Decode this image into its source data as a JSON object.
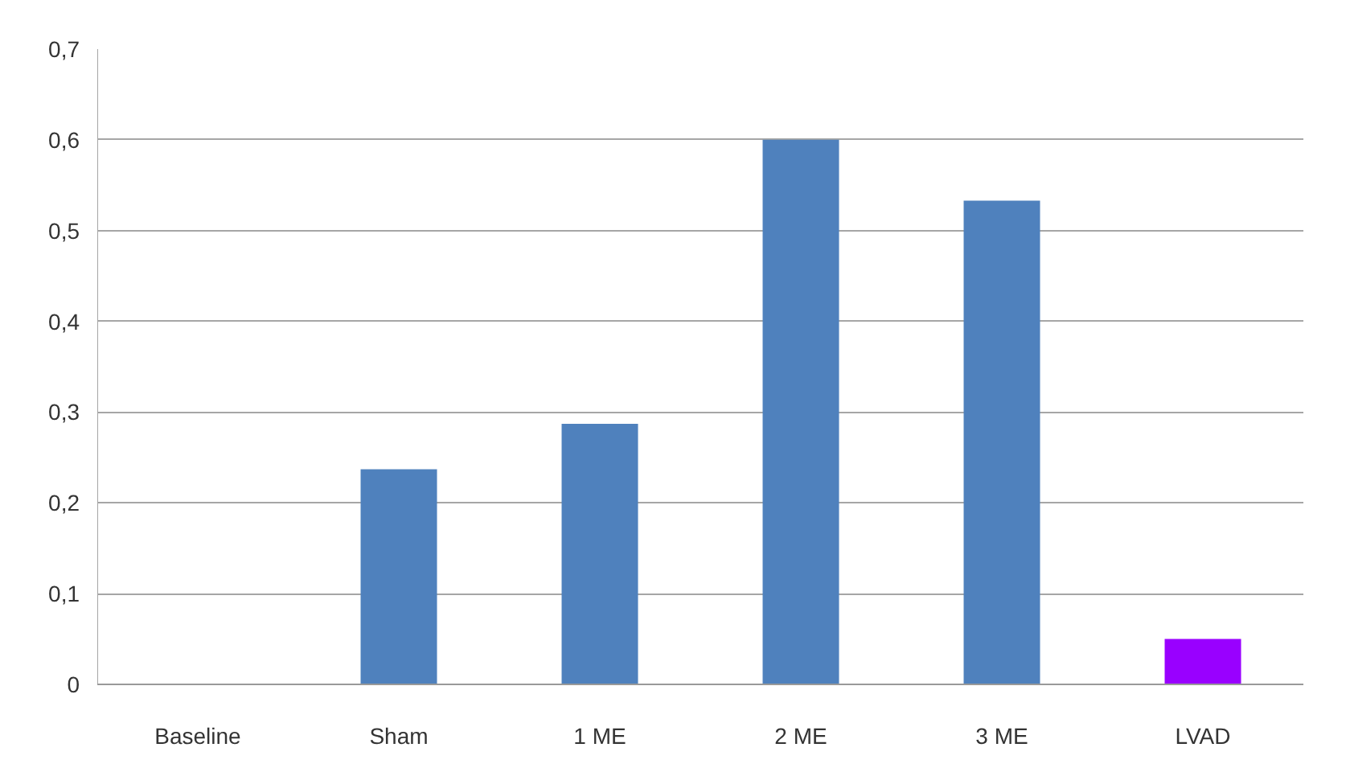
{
  "chart_data": {
    "type": "bar",
    "categories": [
      "Baseline",
      "Sham",
      "1 ME",
      "2 ME",
      "3 ME",
      "LVAD"
    ],
    "values": [
      0,
      0.237,
      0.287,
      0.6,
      0.533,
      0.05
    ],
    "colors": [
      "#4f81bd",
      "#4f81bd",
      "#4f81bd",
      "#4f81bd",
      "#4f81bd",
      "#9900ff"
    ],
    "ylim": [
      0,
      0.7
    ],
    "yticks": [
      0,
      {
        "value": 0.1,
        "label": "0,1"
      },
      {
        "value": 0.2,
        "label": "0,2"
      },
      {
        "value": 0.3,
        "label": "0,3"
      },
      {
        "value": 0.4,
        "label": "0,4"
      },
      {
        "value": 0.5,
        "label": "0,5"
      },
      {
        "value": 0.6,
        "label": "0,6"
      },
      {
        "value": 0.7,
        "label": "0,7"
      }
    ],
    "grid": "y"
  }
}
